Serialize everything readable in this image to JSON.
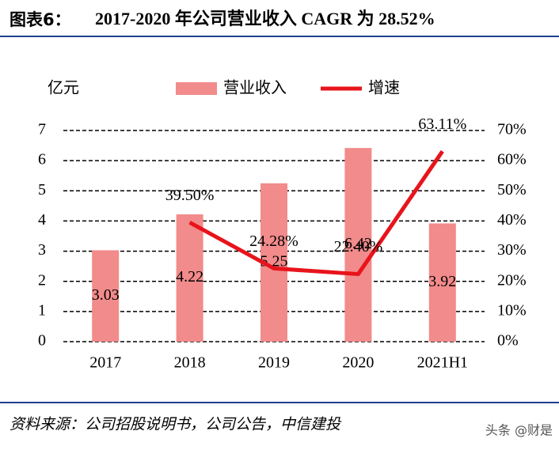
{
  "chart_data": {
    "type": "bar_line",
    "title_label": "图表6：",
    "title": "2017-2020 年公司营业收入 CAGR 为 28.52%",
    "y_label": "亿元",
    "source": "资料来源：公司招股说明书，公司公告，中信建投",
    "watermark": "头条 @财是",
    "categories": [
      "2017",
      "2018",
      "2019",
      "2020",
      "2021H1"
    ],
    "series": [
      {
        "name": "营业收入",
        "type": "bar",
        "color": "#f28b8b",
        "values": [
          3.03,
          4.22,
          5.25,
          6.42,
          3.92
        ]
      },
      {
        "name": "增速",
        "type": "line",
        "axis": "y2",
        "color": "#e8141b",
        "values": [
          null,
          39.5,
          24.28,
          22.4,
          63.11
        ],
        "value_labels": [
          null,
          "39.50%",
          "24.28%",
          "22.40%",
          "63.11%"
        ]
      }
    ],
    "ylim": [
      0,
      7
    ],
    "yticks": [
      0,
      1,
      2,
      3,
      4,
      5,
      6,
      7
    ],
    "y2lim": [
      0,
      70
    ],
    "y2ticks": [
      {
        "value": 0,
        "label": "0%"
      },
      {
        "value": 10,
        "label": "10%"
      },
      {
        "value": 20,
        "label": "20%"
      },
      {
        "value": 30,
        "label": "30%"
      },
      {
        "value": 40,
        "label": "40%"
      },
      {
        "value": 50,
        "label": "50%"
      },
      {
        "value": 60,
        "label": "60%"
      },
      {
        "value": 70,
        "label": "70%"
      }
    ],
    "grid": true,
    "legend": "top"
  }
}
